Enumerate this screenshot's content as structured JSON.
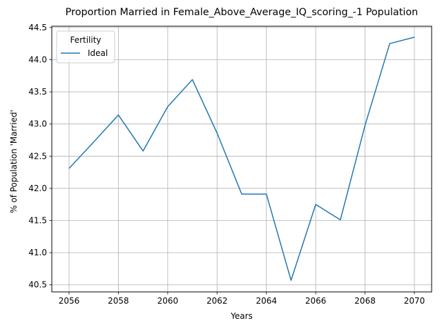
{
  "chart_data": {
    "type": "line",
    "title": "Proportion Married in Female_Above_Average_IQ_scoring_-1 Population",
    "xlabel": "Years",
    "ylabel": "% of Population 'Married'",
    "legend_title": "Fertility",
    "legend_position": "top-left",
    "grid": true,
    "xlim": [
      2055.3,
      2070.7
    ],
    "ylim": [
      40.39,
      44.52
    ],
    "x_ticks": [
      2056,
      2058,
      2060,
      2062,
      2064,
      2066,
      2068,
      2070
    ],
    "y_ticks": [
      40.5,
      41.0,
      41.5,
      42.0,
      42.5,
      43.0,
      43.5,
      44.0,
      44.5
    ],
    "y_tick_labels": [
      "40.5",
      "41.0",
      "41.5",
      "42.0",
      "42.5",
      "43.0",
      "43.5",
      "44.0",
      "44.5"
    ],
    "series": [
      {
        "name": "Ideal",
        "color": "#1f77b4",
        "x": [
          2056,
          2057,
          2058,
          2059,
          2060,
          2061,
          2062,
          2063,
          2064,
          2065,
          2066,
          2067,
          2068,
          2069,
          2070
        ],
        "y": [
          42.31,
          42.72,
          43.14,
          42.58,
          43.27,
          43.69,
          42.86,
          41.91,
          41.91,
          40.57,
          41.75,
          41.51,
          42.98,
          44.25,
          44.35
        ]
      }
    ]
  }
}
